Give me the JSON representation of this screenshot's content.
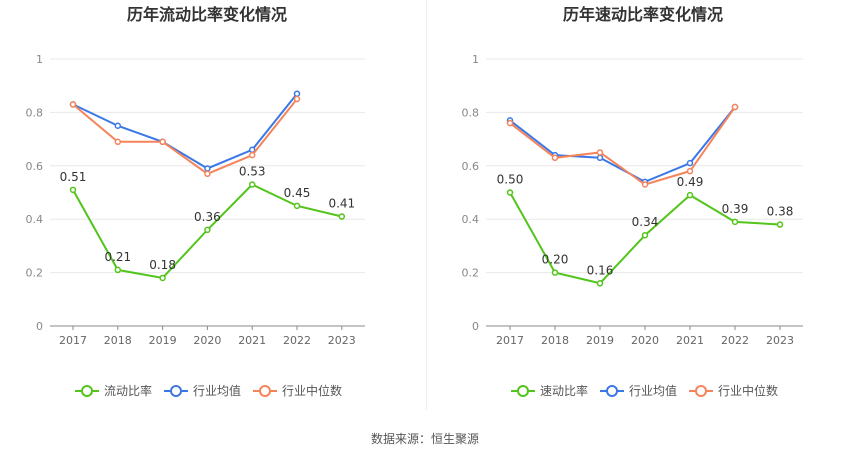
{
  "source": "数据来源：恒生聚源",
  "chart_data": [
    {
      "type": "line",
      "title": "历年流动比率变化情况",
      "categories": [
        "2017",
        "2018",
        "2019",
        "2020",
        "2021",
        "2022",
        "2023"
      ],
      "ylim": [
        0,
        1
      ],
      "yticks": [
        "0",
        "0.2",
        "0.4",
        "0.6",
        "0.8",
        "1"
      ],
      "ytick_values": [
        0,
        0.2,
        0.4,
        0.6,
        0.8,
        1
      ],
      "series": [
        {
          "name": "流动比率",
          "color": "#52c41a",
          "values": [
            0.51,
            0.21,
            0.18,
            0.36,
            0.53,
            0.45,
            0.41
          ],
          "labels": [
            "0.51",
            "0.21",
            "0.18",
            "0.36",
            "0.53",
            "0.45",
            "0.41"
          ]
        },
        {
          "name": "行业均值",
          "color": "#3b78e7",
          "values": [
            0.83,
            0.75,
            0.69,
            0.59,
            0.66,
            0.87,
            null
          ]
        },
        {
          "name": "行业中位数",
          "color": "#f5845a",
          "values": [
            0.83,
            0.69,
            0.69,
            0.57,
            0.64,
            0.85,
            null
          ]
        }
      ]
    },
    {
      "type": "line",
      "title": "历年速动比率变化情况",
      "categories": [
        "2017",
        "2018",
        "2019",
        "2020",
        "2021",
        "2022",
        "2023"
      ],
      "ylim": [
        0,
        1
      ],
      "yticks": [
        "0",
        "0.2",
        "0.4",
        "0.6",
        "0.8",
        "1"
      ],
      "ytick_values": [
        0,
        0.2,
        0.4,
        0.6,
        0.8,
        1
      ],
      "series": [
        {
          "name": "速动比率",
          "color": "#52c41a",
          "values": [
            0.5,
            0.2,
            0.16,
            0.34,
            0.49,
            0.39,
            0.38
          ],
          "labels": [
            "0.50",
            "0.20",
            "0.16",
            "0.34",
            "0.49",
            "0.39",
            "0.38"
          ]
        },
        {
          "name": "行业均值",
          "color": "#3b78e7",
          "values": [
            0.77,
            0.64,
            0.63,
            0.54,
            0.61,
            0.82,
            null
          ]
        },
        {
          "name": "行业中位数",
          "color": "#f5845a",
          "values": [
            0.76,
            0.63,
            0.65,
            0.53,
            0.58,
            0.82,
            null
          ]
        }
      ]
    }
  ]
}
